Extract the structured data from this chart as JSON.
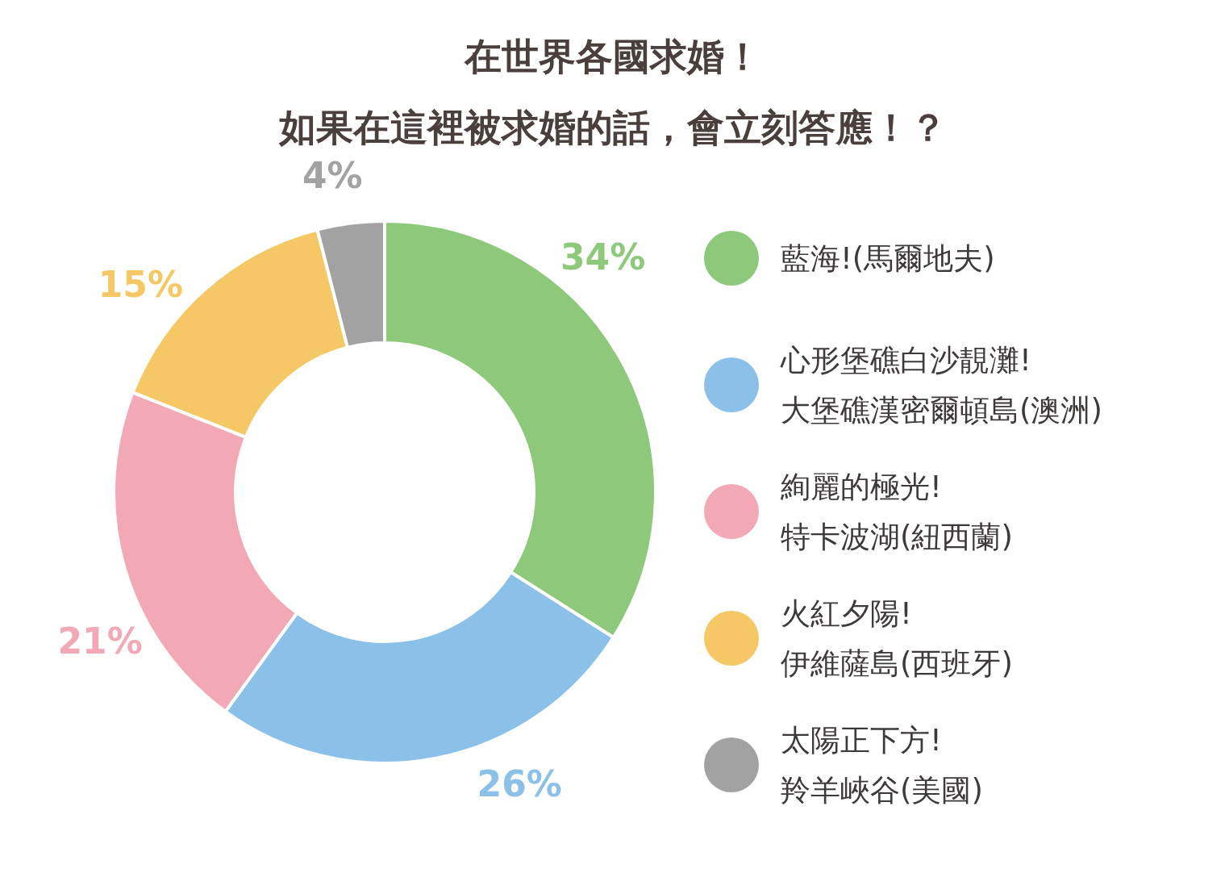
{
  "chart_data": {
    "type": "donut",
    "title": "在世界各國求婚！",
    "subtitle": "如果在這裡被求婚的話，會立刻答應！？",
    "categories": [
      "藍海!(馬爾地夫)",
      "心形堡礁白沙靚灘!\n大堡礁漢密爾頓島(澳洲)",
      "絢麗的極光!\n特卡波湖(紐西蘭)",
      "火紅夕陽!\n伊維薩島(西班牙)",
      "太陽正下方!\n羚羊峽谷(美國)"
    ],
    "values": [
      34,
      26,
      21,
      15,
      4
    ],
    "value_labels": [
      "34%",
      "26%",
      "21%",
      "15%",
      "4%"
    ],
    "colors": [
      "#8ec87a",
      "#8bc0e8",
      "#f2a8b5",
      "#f5c865",
      "#a2a2a2"
    ],
    "legend": "right"
  }
}
